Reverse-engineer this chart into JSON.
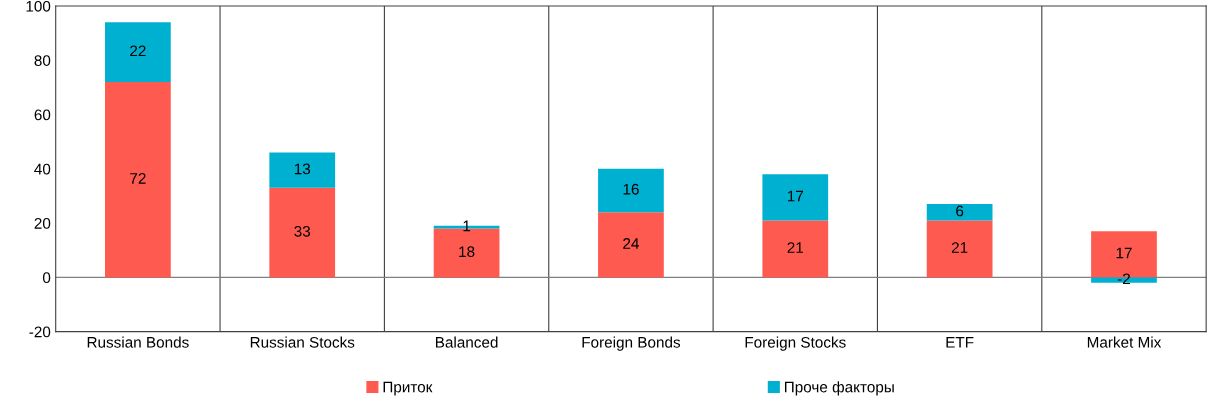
{
  "chart_data": {
    "type": "bar",
    "stacked": true,
    "categories": [
      "Russian Bonds",
      "Russian Stocks",
      "Balanced",
      "Foreign Bonds",
      "Foreign Stocks",
      "ETF",
      "Market Mix"
    ],
    "series": [
      {
        "name": "Приток",
        "color": "#ff5a4f",
        "values": [
          72,
          33,
          18,
          24,
          21,
          21,
          17
        ]
      },
      {
        "name": "Проче факторы",
        "color": "#00b0d0",
        "values": [
          22,
          13,
          1,
          16,
          17,
          6,
          -2
        ]
      }
    ],
    "ylim": [
      -20,
      100
    ],
    "yticks": [
      -20,
      0,
      20,
      40,
      60,
      80,
      100
    ],
    "grid": "x",
    "legend": "bottom",
    "data_labels": true,
    "ref_lines": [
      {
        "axis": "y",
        "value": 0,
        "color": "#808080"
      }
    ]
  }
}
